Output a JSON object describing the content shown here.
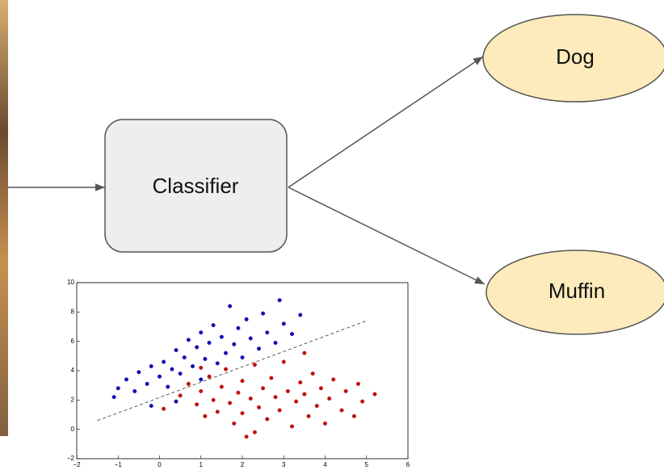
{
  "diagram": {
    "nodes": [
      {
        "label": "Classifier"
      },
      {
        "label": "Dog"
      },
      {
        "label": "Muffin"
      }
    ]
  },
  "chart_data": {
    "type": "scatter",
    "xlim": [
      -2,
      6
    ],
    "ylim": [
      -2,
      10
    ],
    "xticks": [
      {
        "value": -2,
        "label": "−2"
      },
      {
        "value": -1,
        "label": "−1"
      },
      0,
      1,
      2,
      3,
      4,
      5,
      6
    ],
    "yticks": [
      {
        "value": -2,
        "label": "−2"
      },
      0,
      2,
      4,
      6,
      8,
      10
    ],
    "series": [
      {
        "color": "#1010b0",
        "x": [
          -1.1,
          -1,
          -0.8,
          -0.6,
          -0.5,
          -0.3,
          -0.2,
          0,
          0.1,
          0.2,
          0.3,
          0.4,
          0.5,
          0.6,
          0.7,
          0.8,
          0.9,
          1,
          1,
          1.1,
          1.2,
          1.3,
          1.4,
          1.5,
          1.6,
          1.7,
          1.8,
          1.9,
          2,
          2.1,
          2.2,
          2.4,
          2.5,
          2.6,
          2.8,
          2.9,
          3,
          3.2,
          3.4,
          -0.2,
          0.4
        ],
        "values": [
          2.2,
          2.8,
          3.4,
          2.6,
          3.9,
          3.1,
          4.3,
          3.6,
          4.6,
          2.9,
          4.1,
          5.4,
          3.8,
          4.9,
          6.1,
          4.3,
          5.6,
          3.4,
          6.6,
          4.8,
          5.9,
          7.1,
          4.5,
          6.3,
          5.2,
          8.4,
          5.8,
          6.9,
          4.9,
          7.5,
          6.2,
          5.5,
          7.9,
          6.6,
          5.9,
          8.8,
          7.2,
          6.5,
          7.8,
          1.6,
          1.9
        ]
      },
      {
        "color": "#c01010",
        "x": [
          0.1,
          0.5,
          0.7,
          0.9,
          1,
          1.1,
          1.2,
          1.3,
          1.4,
          1.5,
          1.6,
          1.7,
          1.8,
          1.9,
          2,
          2,
          2.1,
          2.2,
          2.3,
          2.4,
          2.5,
          2.6,
          2.7,
          2.8,
          2.9,
          3,
          3.1,
          3.2,
          3.3,
          3.4,
          3.5,
          3.6,
          3.7,
          3.8,
          3.9,
          4,
          4.1,
          4.2,
          4.4,
          4.5,
          4.7,
          4.9,
          5.2,
          4.8,
          2.3,
          3.5,
          1
        ],
        "values": [
          1.4,
          2.3,
          3.1,
          1.7,
          2.6,
          0.9,
          3.6,
          2,
          1.2,
          2.9,
          4.1,
          1.8,
          0.4,
          2.5,
          3.3,
          1.1,
          -0.5,
          2.1,
          4.4,
          1.5,
          2.8,
          0.7,
          3.5,
          2.2,
          1.3,
          4.6,
          2.6,
          0.2,
          1.9,
          3.2,
          2.4,
          0.9,
          3.8,
          1.6,
          2.8,
          0.4,
          2.1,
          3.4,
          1.3,
          2.6,
          0.9,
          1.9,
          2.4,
          3.1,
          -0.2,
          5.2,
          4.2
        ]
      }
    ],
    "reference_line": {
      "x": [
        -1.5,
        5
      ],
      "values": [
        0.6,
        7.4
      ]
    }
  }
}
